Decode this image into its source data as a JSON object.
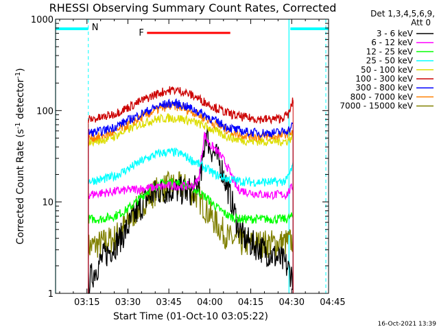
{
  "chart_data": {
    "type": "line",
    "title": "RHESSI Observing Summary Count Rates, Corrected",
    "xlabel": "Start Time (01-Oct-10 03:05:22)",
    "ylabel": "Corrected Count Rate (s⁻¹ detector⁻¹)",
    "ylabel_main": "Corrected Count Rate (s",
    "ylabel_sup1": "-1",
    "ylabel_mid": " detector",
    "ylabel_sup2": "-1",
    "ylabel_end": ")",
    "y_scale": "log",
    "ylim": [
      1,
      1000
    ],
    "xlim_minutes": [
      3.5,
      103.5
    ],
    "x_ticks": [
      {
        "label": "03:15",
        "minute": 15
      },
      {
        "label": "03:30",
        "minute": 30
      },
      {
        "label": "03:45",
        "minute": 45
      },
      {
        "label": "04:00",
        "minute": 60
      },
      {
        "label": "04:15",
        "minute": 75
      },
      {
        "label": "04:30",
        "minute": 90
      },
      {
        "label": "04:45",
        "minute": 105
      }
    ],
    "y_ticks": [
      {
        "label": "1",
        "value": 1
      },
      {
        "label": "10",
        "value": 10
      },
      {
        "label": "100",
        "value": 100
      },
      {
        "label": "1000",
        "value": 1000
      }
    ],
    "legend": {
      "placement": "top-right",
      "header": [
        "Det 1,3,4,5,6,9,",
        "Att 0"
      ]
    },
    "data_window_minutes": [
      15.5,
      90.5
    ],
    "series": [
      {
        "name": "3 - 6 keV",
        "color": "#000000",
        "points": [
          [
            15.5,
            1.3
          ],
          [
            18,
            1.8
          ],
          [
            21,
            2.5
          ],
          [
            25,
            3.3
          ],
          [
            29,
            4.7
          ],
          [
            33,
            7.5
          ],
          [
            37,
            11
          ],
          [
            41,
            13
          ],
          [
            45,
            13.5
          ],
          [
            48,
            13.5
          ],
          [
            51,
            13
          ],
          [
            53,
            13
          ],
          [
            55,
            14
          ],
          [
            57,
            20
          ],
          [
            58.5,
            60
          ],
          [
            60,
            40
          ],
          [
            62,
            33
          ],
          [
            64,
            25
          ],
          [
            66,
            16
          ],
          [
            68,
            10
          ],
          [
            70,
            6
          ],
          [
            72,
            4.2
          ],
          [
            75,
            3.5
          ],
          [
            78,
            3.2
          ],
          [
            81,
            2.8
          ],
          [
            84,
            2.5
          ],
          [
            87,
            2.2
          ],
          [
            89,
            1.8
          ],
          [
            90.5,
            1.5
          ]
        ]
      },
      {
        "name": "6 - 12 keV",
        "color": "#ff00ff",
        "points": [
          [
            15.5,
            12
          ],
          [
            20,
            12.5
          ],
          [
            25,
            13
          ],
          [
            30,
            13.5
          ],
          [
            35,
            14
          ],
          [
            40,
            14.5
          ],
          [
            45,
            15
          ],
          [
            48,
            15
          ],
          [
            51,
            15
          ],
          [
            54,
            15
          ],
          [
            56,
            18
          ],
          [
            58,
            55
          ],
          [
            60,
            42
          ],
          [
            62,
            38
          ],
          [
            64,
            32
          ],
          [
            66,
            26
          ],
          [
            68,
            19
          ],
          [
            70,
            14
          ],
          [
            73,
            13
          ],
          [
            76,
            12.5
          ],
          [
            80,
            12
          ],
          [
            84,
            12
          ],
          [
            88,
            12
          ],
          [
            90.5,
            15
          ]
        ]
      },
      {
        "name": "12 - 25 keV",
        "color": "#00ff00",
        "points": [
          [
            15.5,
            6.5
          ],
          [
            20,
            6.5
          ],
          [
            25,
            7
          ],
          [
            29,
            8
          ],
          [
            33,
            10
          ],
          [
            37,
            13
          ],
          [
            41,
            15.5
          ],
          [
            45,
            16.5
          ],
          [
            48,
            16
          ],
          [
            51,
            15.5
          ],
          [
            55,
            13.5
          ],
          [
            59,
            11
          ],
          [
            63,
            8.5
          ],
          [
            67,
            7
          ],
          [
            71,
            6.5
          ],
          [
            75,
            6.5
          ],
          [
            80,
            6.5
          ],
          [
            84,
            6.5
          ],
          [
            88,
            6.5
          ],
          [
            90.5,
            7
          ]
        ]
      },
      {
        "name": "25 - 50 keV",
        "color": "#00ffff",
        "points": [
          [
            15.5,
            17
          ],
          [
            20,
            17.5
          ],
          [
            25,
            19
          ],
          [
            30,
            23
          ],
          [
            35,
            28
          ],
          [
            40,
            33
          ],
          [
            44,
            35
          ],
          [
            47,
            35
          ],
          [
            50,
            33
          ],
          [
            54,
            28
          ],
          [
            58,
            24
          ],
          [
            62,
            20
          ],
          [
            66,
            18
          ],
          [
            70,
            17
          ],
          [
            75,
            16.5
          ],
          [
            80,
            16.5
          ],
          [
            85,
            16.5
          ],
          [
            88,
            17
          ],
          [
            90.5,
            25
          ]
        ]
      },
      {
        "name": "50 - 100 keV",
        "color": "#dddd00",
        "points": [
          [
            15.5,
            46
          ],
          [
            20,
            47
          ],
          [
            25,
            52
          ],
          [
            30,
            62
          ],
          [
            35,
            72
          ],
          [
            40,
            80
          ],
          [
            45,
            83
          ],
          [
            49,
            82
          ],
          [
            53,
            77
          ],
          [
            57,
            70
          ],
          [
            61,
            62
          ],
          [
            65,
            54
          ],
          [
            69,
            49
          ],
          [
            73,
            47
          ],
          [
            78,
            46
          ],
          [
            83,
            46
          ],
          [
            88,
            46
          ],
          [
            90.5,
            52
          ]
        ]
      },
      {
        "name": "100 - 300 keV",
        "color": "#cc0000",
        "points": [
          [
            15.5,
            80
          ],
          [
            20,
            83
          ],
          [
            25,
            92
          ],
          [
            30,
            108
          ],
          [
            35,
            128
          ],
          [
            40,
            150
          ],
          [
            44,
            165
          ],
          [
            47,
            168
          ],
          [
            50,
            162
          ],
          [
            54,
            145
          ],
          [
            58,
            125
          ],
          [
            62,
            108
          ],
          [
            66,
            95
          ],
          [
            70,
            87
          ],
          [
            74,
            83
          ],
          [
            78,
            81
          ],
          [
            82,
            80
          ],
          [
            86,
            82
          ],
          [
            89,
            92
          ],
          [
            90.5,
            130
          ]
        ]
      },
      {
        "name": "300 - 800 keV",
        "color": "#0000ff",
        "points": [
          [
            15.5,
            57
          ],
          [
            20,
            59
          ],
          [
            25,
            66
          ],
          [
            30,
            78
          ],
          [
            35,
            92
          ],
          [
            40,
            108
          ],
          [
            44,
            118
          ],
          [
            47,
            120
          ],
          [
            50,
            115
          ],
          [
            54,
            103
          ],
          [
            58,
            90
          ],
          [
            62,
            77
          ],
          [
            66,
            67
          ],
          [
            70,
            61
          ],
          [
            74,
            58
          ],
          [
            78,
            57
          ],
          [
            82,
            57
          ],
          [
            86,
            58
          ],
          [
            89,
            62
          ],
          [
            90.5,
            70
          ]
        ]
      },
      {
        "name": "800 - 7000 keV",
        "color": "#ff8000",
        "points": [
          [
            15.5,
            50
          ],
          [
            20,
            52
          ],
          [
            25,
            58
          ],
          [
            30,
            70
          ],
          [
            35,
            84
          ],
          [
            40,
            100
          ],
          [
            44,
            110
          ],
          [
            47,
            112
          ],
          [
            50,
            107
          ],
          [
            54,
            96
          ],
          [
            58,
            83
          ],
          [
            62,
            71
          ],
          [
            66,
            62
          ],
          [
            70,
            56
          ],
          [
            74,
            53
          ],
          [
            78,
            52
          ],
          [
            82,
            52
          ],
          [
            86,
            53
          ],
          [
            89,
            57
          ],
          [
            90.5,
            60
          ]
        ]
      },
      {
        "name": "7000 - 15000 keV",
        "color": "#808000",
        "points": [
          [
            15.5,
            3.2
          ],
          [
            20,
            3.5
          ],
          [
            25,
            4
          ],
          [
            29,
            5.5
          ],
          [
            33,
            8
          ],
          [
            37,
            11
          ],
          [
            41,
            13.5
          ],
          [
            45,
            15
          ],
          [
            48,
            15
          ],
          [
            51,
            14.5
          ],
          [
            55,
            12
          ],
          [
            59,
            8
          ],
          [
            63,
            5.5
          ],
          [
            67,
            4
          ],
          [
            71,
            3.6
          ],
          [
            75,
            3.5
          ],
          [
            80,
            3.5
          ],
          [
            84,
            3.5
          ],
          [
            88,
            3.6
          ],
          [
            90.5,
            3.8
          ]
        ]
      }
    ],
    "annotations": {
      "night_label": "N",
      "flare_label": "F",
      "night_color": "#00ffff",
      "flare_color": "#ff0000",
      "night_segments": [
        [
          3.5,
          15.5
        ],
        [
          89.5,
          103.5
        ]
      ],
      "night_dashed_x": [
        15.5,
        102.5
      ],
      "cyan_solid_x": [
        3.5,
        89
      ],
      "flare_segment": [
        37,
        67.5
      ]
    }
  },
  "footer": {
    "timestamp": "16-Oct-2021 13:39"
  }
}
